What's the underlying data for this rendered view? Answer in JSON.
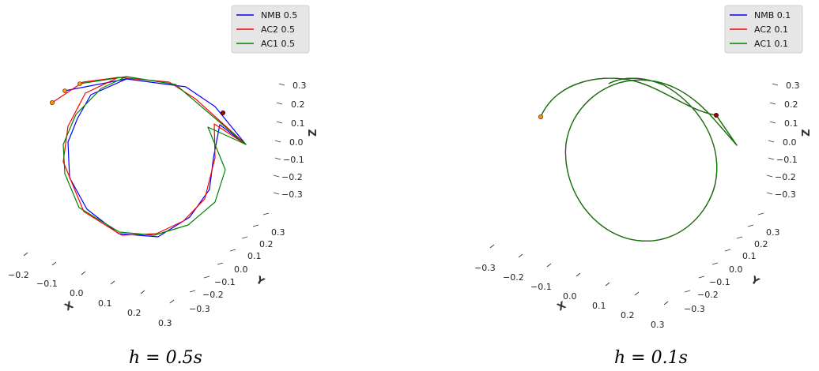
{
  "chart_data": [
    {
      "type": "line",
      "projection": "3d",
      "caption": "h = 0.5s",
      "legend_placement": "top-right",
      "series": [
        {
          "name": "NMB 0.5",
          "color": "#0000ff"
        },
        {
          "name": "AC2 0.5",
          "color": "#ff0000"
        },
        {
          "name": "AC1 0.5",
          "color": "#008000"
        }
      ],
      "axes": {
        "x": {
          "label": "X",
          "ticks": [
            "−0.2",
            "−0.1",
            "0.0",
            "0.1",
            "0.2",
            "0.3"
          ]
        },
        "y": {
          "label": "Y",
          "ticks": [
            "0.3",
            "0.2",
            "0.1",
            "0.0",
            "−0.1",
            "−0.2",
            "−0.3"
          ]
        },
        "z": {
          "label": "Z",
          "ticks": [
            "0.3",
            "0.2",
            "0.1",
            "0.0",
            "−0.1",
            "−0.2",
            "−0.3"
          ]
        }
      }
    },
    {
      "type": "line",
      "projection": "3d",
      "caption": "h = 0.1s",
      "legend_placement": "top-right",
      "series": [
        {
          "name": "NMB 0.1",
          "color": "#0000ff"
        },
        {
          "name": "AC2 0.1",
          "color": "#ff0000"
        },
        {
          "name": "AC1 0.1",
          "color": "#008000"
        }
      ],
      "axes": {
        "x": {
          "label": "X",
          "ticks": [
            "−0.3",
            "−0.2",
            "−0.1",
            "0.0",
            "0.1",
            "0.2",
            "0.3"
          ]
        },
        "y": {
          "label": "Y",
          "ticks": [
            "0.3",
            "0.2",
            "0.1",
            "0.0",
            "−0.1",
            "−0.2",
            "−0.3"
          ]
        },
        "z": {
          "label": "Z",
          "ticks": [
            "0.3",
            "0.2",
            "0.1",
            "0.0",
            "−0.1",
            "−0.2",
            "−0.3"
          ]
        }
      }
    }
  ]
}
